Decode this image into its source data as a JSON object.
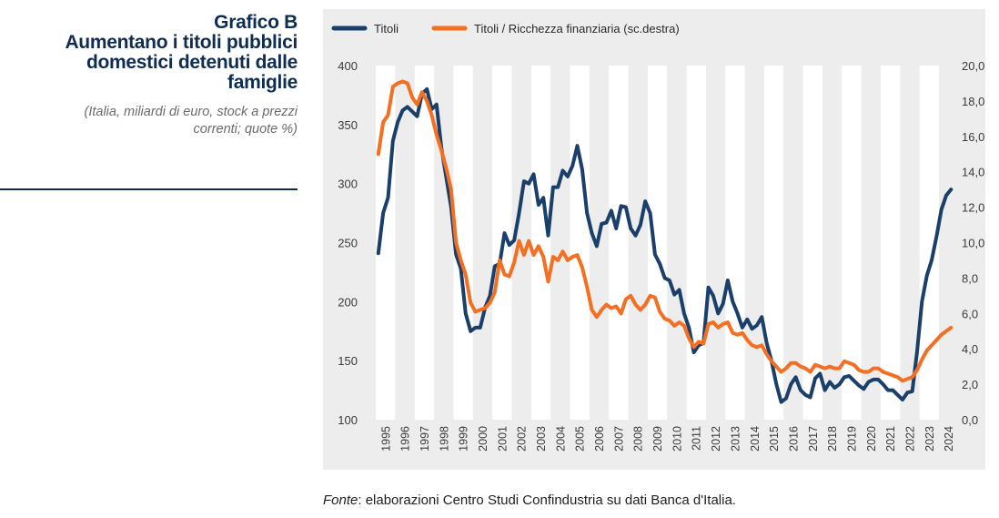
{
  "caption": {
    "title_lines": [
      "Grafico B",
      "Aumentano i titoli pubblici",
      "domestici detenuti dalle",
      "famiglie"
    ],
    "subtitle_lines": [
      "(Italia, miliardi di euro, stock a prezzi",
      "correnti; quote %)"
    ]
  },
  "source": {
    "label": "Fonte",
    "text": ": elaborazioni Centro Studi Confindustria su dati Banca d'Italia."
  },
  "colors": {
    "series_titoli": "#1b3f6b",
    "series_ratio": "#f36f21",
    "band": "#ffffff",
    "panel": "#ededed",
    "title": "#0f2d52"
  },
  "chart_data": {
    "type": "line",
    "title": "Aumentano i titoli pubblici domestici detenuti dalle famiglie",
    "frequency": "quarterly",
    "start": "1995Q1",
    "x_tick_labels": [
      "1995",
      "1996",
      "1997",
      "1998",
      "1999",
      "2000",
      "2001",
      "2002",
      "2003",
      "2004",
      "2005",
      "2006",
      "2007",
      "2008",
      "2009",
      "2010",
      "2011",
      "2012",
      "2013",
      "2014",
      "2015",
      "2016",
      "2017",
      "2018",
      "2019",
      "2020",
      "2021",
      "2022",
      "2023",
      "2024"
    ],
    "y_left": {
      "min": 100,
      "max": 400,
      "ticks": [
        "100",
        "150",
        "200",
        "250",
        "300",
        "350",
        "400"
      ]
    },
    "y_right": {
      "min": 0,
      "max": 20,
      "ticks": [
        "0,0",
        "2,0",
        "4,0",
        "6,0",
        "8,0",
        "10,0",
        "12,0",
        "14,0",
        "16,0",
        "18,0",
        "20,0"
      ]
    },
    "legend": {
      "position": "top-left"
    },
    "grid": "alternating-year-bands",
    "series": [
      {
        "name": "Titoli",
        "axis": "left",
        "values": [
          241,
          275,
          288,
          336,
          352,
          362,
          365,
          361,
          357,
          376,
          380,
          363,
          367,
          330,
          305,
          280,
          240,
          228,
          190,
          175,
          178,
          178,
          195,
          205,
          230,
          232,
          258,
          248,
          252,
          275,
          302,
          300,
          308,
          282,
          288,
          256,
          297,
          297,
          311,
          306,
          315,
          332,
          312,
          275,
          258,
          247,
          266,
          267,
          277,
          262,
          281,
          280,
          262,
          256,
          265,
          285,
          275,
          240,
          232,
          220,
          218,
          206,
          210,
          190,
          178,
          157,
          163,
          165,
          212,
          205,
          190,
          198,
          218,
          200,
          190,
          178,
          185,
          177,
          180,
          187,
          165,
          150,
          130,
          115,
          118,
          130,
          136,
          125,
          121,
          119,
          135,
          139,
          125,
          132,
          127,
          130,
          136,
          137,
          133,
          129,
          126,
          132,
          134,
          134,
          130,
          125,
          125,
          121,
          117,
          123,
          124,
          158,
          200,
          222,
          235,
          255,
          278,
          290,
          295
        ]
      },
      {
        "name": "Titoli / Ricchezza finanziaria (sc.destra)",
        "axis": "right",
        "values": [
          15.0,
          16.8,
          17.2,
          18.8,
          19.0,
          19.1,
          19.0,
          18.2,
          17.8,
          18.5,
          18.0,
          17.2,
          16.1,
          15.2,
          14.2,
          13.0,
          10.0,
          9.0,
          8.2,
          6.6,
          6.1,
          6.2,
          6.3,
          6.6,
          7.2,
          9.0,
          8.2,
          8.1,
          8.9,
          10.1,
          9.3,
          10.1,
          9.3,
          9.8,
          9.2,
          7.8,
          9.2,
          9.0,
          9.5,
          9.0,
          9.2,
          9.3,
          8.6,
          7.5,
          6.2,
          5.8,
          6.2,
          6.5,
          6.3,
          6.4,
          6.0,
          6.8,
          7.0,
          6.5,
          6.2,
          6.5,
          7.0,
          6.9,
          6.1,
          5.7,
          5.6,
          5.3,
          5.5,
          5.3,
          4.6,
          4.1,
          4.4,
          4.3,
          5.4,
          5.5,
          5.2,
          5.4,
          5.5,
          4.9,
          4.8,
          4.9,
          4.5,
          4.2,
          4.1,
          4.2,
          3.7,
          3.3,
          3.0,
          2.7,
          2.9,
          3.2,
          3.2,
          3.0,
          2.9,
          2.7,
          3.1,
          3.0,
          2.9,
          3.0,
          2.9,
          2.9,
          3.3,
          3.2,
          3.1,
          2.8,
          2.7,
          2.7,
          2.9,
          2.9,
          2.7,
          2.6,
          2.5,
          2.4,
          2.2,
          2.3,
          2.4,
          2.8,
          3.4,
          3.9,
          4.2,
          4.5,
          4.8,
          5.0,
          5.2
        ]
      }
    ]
  }
}
